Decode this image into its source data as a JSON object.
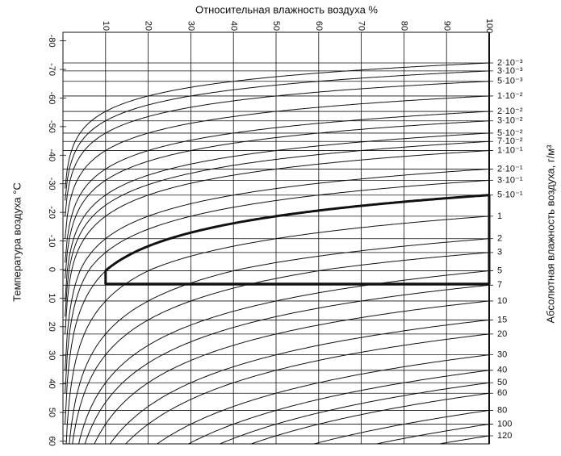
{
  "chart_data": {
    "type": "nomogram",
    "title": "Относительная влажность воздуха %",
    "ylabel": "Температура воздуха  °C",
    "y2label": "Абсолютная влажность воздуха, г/м³",
    "color": "#111111",
    "xlim": [
      0,
      100
    ],
    "xticks": [
      10,
      20,
      30,
      40,
      50,
      60,
      70,
      80,
      90,
      100
    ],
    "ylim": [
      -83,
      61
    ],
    "yticks": [
      -80,
      -70,
      -60,
      -50,
      -40,
      -30,
      -20,
      -10,
      0,
      10,
      20,
      30,
      40,
      50,
      60
    ],
    "y2ticks": [
      {
        "value": 0.002,
        "label": "2·10⁻³"
      },
      {
        "value": 0.003,
        "label": "3·10⁻³"
      },
      {
        "value": 0.005,
        "label": "5·10⁻³"
      },
      {
        "value": 0.01,
        "label": "1·10⁻²"
      },
      {
        "value": 0.02,
        "label": "2·10⁻²"
      },
      {
        "value": 0.03,
        "label": "3·10⁻²"
      },
      {
        "value": 0.05,
        "label": "5·10⁻²"
      },
      {
        "value": 0.07,
        "label": "7·10⁻²"
      },
      {
        "value": 0.1,
        "label": "1·10⁻¹"
      },
      {
        "value": 0.2,
        "label": "2·10⁻¹"
      },
      {
        "value": 0.3,
        "label": "3·10⁻¹"
      },
      {
        "value": 0.5,
        "label": "5·10⁻¹"
      },
      1,
      2,
      3,
      5,
      7,
      10,
      15,
      20,
      30,
      40,
      50,
      60,
      80,
      100,
      120
    ],
    "region": {
      "absolute_humidity": 0.5,
      "rh": [
        10,
        100
      ],
      "temperature_max": 5
    }
  }
}
